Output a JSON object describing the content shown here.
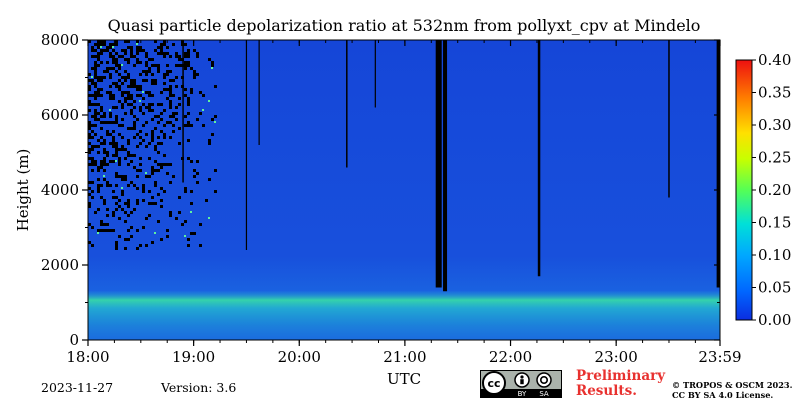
{
  "title": "Quasi particle depolarization ratio at 532nm from pollyxt_cpv at Mindelo",
  "footer": {
    "date": "2023-11-27",
    "version": "Version: 3.6",
    "preliminary_line1": "Preliminary",
    "preliminary_line2": "Results.",
    "copyright_line1": "© TROPOS & OSCM 2023.",
    "copyright_line2": "CC BY SA 4.0 License.",
    "license_badge": {
      "cc": "cc",
      "by": "BY",
      "sa": "SA"
    }
  },
  "chart_data": {
    "type": "heatmap",
    "title": "Quasi particle depolarization ratio at 532nm from pollyxt_cpv at Mindelo",
    "xlabel": "UTC",
    "ylabel": "Height (m)",
    "x_tick_labels": [
      "18:00",
      "19:00",
      "20:00",
      "21:00",
      "22:00",
      "23:00",
      "23:59"
    ],
    "x_tick_hours": [
      18,
      19,
      20,
      21,
      22,
      23,
      23.983
    ],
    "xlim_hours": [
      18,
      23.983
    ],
    "y_tick_labels": [
      "0",
      "2000",
      "4000",
      "6000",
      "8000"
    ],
    "ylim": [
      0,
      8000
    ],
    "colorbar": {
      "colormap": "jet",
      "range": [
        0.0,
        0.4
      ],
      "tick_labels": [
        "0.00",
        "0.05",
        "0.10",
        "0.15",
        "0.20",
        "0.25",
        "0.30",
        "0.35",
        "0.40"
      ]
    },
    "features": {
      "background_value": 0.015,
      "aerosol_layer_top_m": 1300,
      "aerosol_layer_peak_value": 0.15,
      "noise_region_start_hour": 18.0,
      "noise_region_end_hour": 19.2,
      "noise_region_bottom_m": 2400,
      "no_data_columns_hours": [
        18.9,
        19.5,
        19.62,
        20.45,
        20.72,
        21.32,
        21.38,
        22.27,
        23.5,
        23.97
      ]
    }
  }
}
